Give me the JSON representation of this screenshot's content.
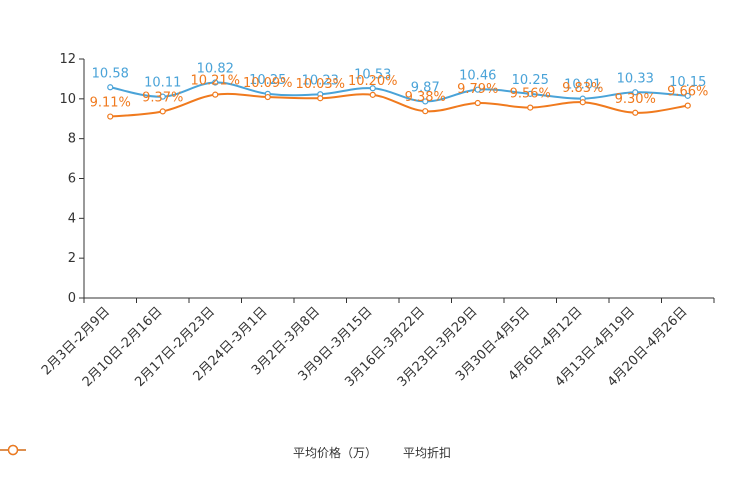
{
  "chart_data": {
    "type": "line",
    "categories": [
      "2月3日-2月9日",
      "2月10日-2月16日",
      "2月17日-2月23日",
      "2月24日-3月1日",
      "3月2日-3月8日",
      "3月9日-3月15日",
      "3月16日-3月22日",
      "3月23日-3月29日",
      "3月30日-4月5日",
      "4月6日-4月12日",
      "4月13日-4月19日",
      "4月20日-4月26日"
    ],
    "series": [
      {
        "name": "平均价格（万）",
        "color": "#4aa3d8",
        "values": [
          10.58,
          10.11,
          10.82,
          10.25,
          10.23,
          10.53,
          9.87,
          10.46,
          10.25,
          10.01,
          10.33,
          10.15
        ],
        "labels": [
          "10.58",
          "10.11",
          "10.82",
          "10.25",
          "10.23",
          "10.53",
          "9.87",
          "10.46",
          "10.25",
          "10.01",
          "10.33",
          "10.15"
        ]
      },
      {
        "name": "平均折扣",
        "color": "#f07a1e",
        "values": [
          9.11,
          9.37,
          10.21,
          10.09,
          10.03,
          10.2,
          9.38,
          9.79,
          9.56,
          9.83,
          9.3,
          9.66
        ],
        "labels": [
          "9.11%",
          "9.37%",
          "10.21%",
          "10.09%",
          "10.03%",
          "10.20%",
          "9.38%",
          "9.79%",
          "9.56%",
          "9.83%",
          "9.30%",
          "9.66%"
        ]
      }
    ],
    "yticks": [
      "0",
      "2",
      "4",
      "6",
      "8",
      "10",
      "12"
    ],
    "ylim": [
      0,
      12
    ],
    "title": "",
    "xlabel": "",
    "ylabel": "",
    "grid": false,
    "legend_position": "bottom"
  }
}
